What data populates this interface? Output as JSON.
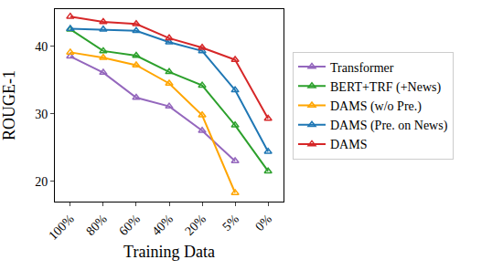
{
  "chart_data": {
    "type": "line",
    "x_label": "Training Data",
    "y_label": "ROUGE-1",
    "categories": [
      "100%",
      "80%",
      "60%",
      "40%",
      "20%",
      "5%",
      "0%"
    ],
    "ylim": [
      17,
      45.5
    ],
    "yticks": [
      20,
      30,
      40
    ],
    "grid": false,
    "legend": "right",
    "marker": "triangle",
    "series": [
      {
        "name": "Transformer",
        "color": "#9467bd",
        "values": [
          38.5,
          36.1,
          32.4,
          31.1,
          27.5,
          23.0,
          null
        ]
      },
      {
        "name": "BERT+TRF (+News)",
        "color": "#2ca02c",
        "values": [
          42.5,
          39.3,
          38.6,
          36.2,
          34.2,
          28.3,
          21.5
        ]
      },
      {
        "name": "DAMS (w/o Pre.)",
        "color": "#ffa500",
        "values": [
          39.1,
          38.3,
          37.2,
          34.5,
          29.8,
          18.3,
          null
        ]
      },
      {
        "name": "DAMS (Pre. on News)",
        "color": "#1f77b4",
        "values": [
          42.6,
          42.5,
          42.3,
          40.6,
          39.3,
          33.5,
          24.4
        ]
      },
      {
        "name": "DAMS",
        "color": "#d62728",
        "values": [
          44.4,
          43.6,
          43.3,
          41.2,
          39.8,
          38.0,
          29.3
        ]
      }
    ]
  }
}
